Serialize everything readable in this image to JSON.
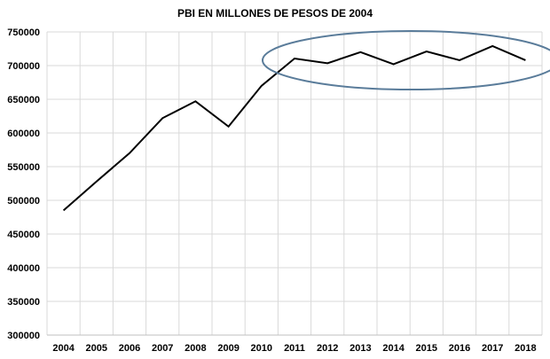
{
  "chart_data": {
    "type": "line",
    "title": "PBI EN MILLONES DE PESOS DE 2004",
    "xlabel": "",
    "ylabel": "",
    "categories": [
      "2004",
      "2005",
      "2006",
      "2007",
      "2008",
      "2009",
      "2010",
      "2011",
      "2012",
      "2013",
      "2014",
      "2015",
      "2016",
      "2017",
      "2018"
    ],
    "series": [
      {
        "name": "PBI",
        "values": [
          485000,
          528000,
          570000,
          622000,
          647000,
          609500,
          670000,
          710500,
          703500,
          720000,
          702000,
          721000,
          708000,
          729000,
          708000
        ]
      }
    ],
    "ylim": [
      300000,
      750000
    ],
    "yticks": [
      "300000",
      "350000",
      "400000",
      "450000",
      "500000",
      "550000",
      "600000",
      "650000",
      "700000",
      "750000"
    ],
    "grid": true,
    "legend": "none",
    "annotation": {
      "type": "ellipse",
      "highlights_categories": [
        "2011",
        "2018"
      ],
      "color": "#5a7c9a"
    },
    "line_color": "#000000"
  }
}
